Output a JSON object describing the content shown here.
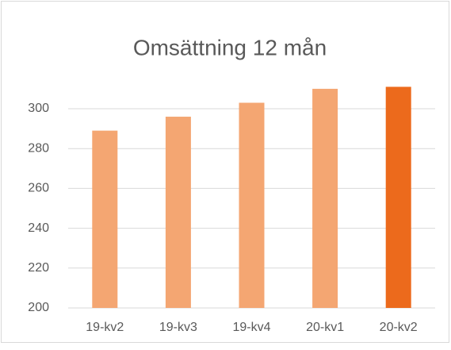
{
  "chart_data": {
    "type": "bar",
    "title": "Omsättning 12 mån",
    "categories": [
      "19-kv2",
      "19-kv3",
      "19-kv4",
      "20-kv1",
      "20-kv2"
    ],
    "values": [
      289,
      296,
      303,
      310,
      311
    ],
    "colors": [
      "#f4a672",
      "#f4a672",
      "#f4a672",
      "#f4a672",
      "#ec6a1c"
    ],
    "ylim": [
      200,
      315
    ],
    "yticks": [
      200,
      220,
      240,
      260,
      280,
      300
    ],
    "grid": true
  }
}
